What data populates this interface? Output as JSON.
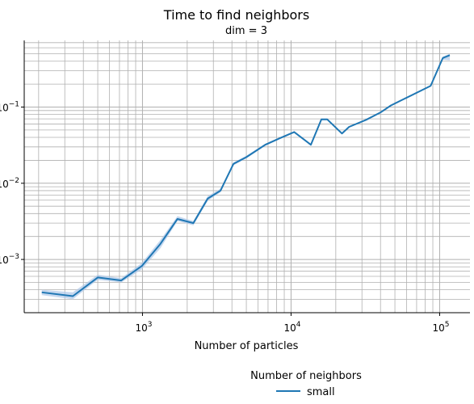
{
  "chart_data": {
    "type": "line",
    "title": "Time to find neighbors",
    "subtitle": "dim = 3",
    "xlabel": "Number of particles",
    "ylabel": "",
    "xscale": "log",
    "yscale": "log",
    "xlim": [
      160,
      160000
    ],
    "ylim": [
      0.0002,
      0.75
    ],
    "grid": "major and minor",
    "x_ticks": [
      {
        "value": 1000,
        "base": "10",
        "exp": "3"
      },
      {
        "value": 10000,
        "base": "10",
        "exp": "4"
      },
      {
        "value": 100000,
        "base": "10",
        "exp": "5"
      }
    ],
    "y_ticks": [
      {
        "value": 0.001,
        "base": "10",
        "exp": "−3"
      },
      {
        "value": 0.01,
        "base": "10",
        "exp": "−2"
      },
      {
        "value": 0.1,
        "base": "10",
        "exp": "−1"
      }
    ],
    "legend": {
      "title": "Number of neighbors",
      "placement": "bottom-center",
      "entries": [
        "small"
      ]
    },
    "series": [
      {
        "name": "small",
        "color": "#1f77b4",
        "band_color": "#aec7e8",
        "x": [
          210,
          340,
          500,
          720,
          990,
          1320,
          1720,
          2200,
          2750,
          3350,
          4100,
          5000,
          6700,
          8400,
          10500,
          13600,
          16000,
          17500,
          22000,
          24600,
          32000,
          40000,
          47000,
          54000,
          87000,
          105000,
          117000
        ],
        "y": [
          0.00037,
          0.00033,
          0.00058,
          0.00053,
          0.00082,
          0.0016,
          0.0034,
          0.003,
          0.0063,
          0.008,
          0.018,
          0.022,
          0.032,
          0.039,
          0.047,
          0.032,
          0.069,
          0.069,
          0.045,
          0.055,
          0.068,
          0.085,
          0.105,
          0.12,
          0.19,
          0.44,
          0.48
        ],
        "y_lower": [
          0.00034,
          0.0003,
          0.00054,
          0.0005,
          0.00074,
          0.0014,
          0.0032,
          0.0028,
          0.0059,
          0.0076,
          0.0172,
          0.0212,
          0.031,
          0.038,
          0.046,
          0.031,
          0.067,
          0.067,
          0.044,
          0.054,
          0.067,
          0.084,
          0.104,
          0.119,
          0.188,
          0.42,
          0.41
        ],
        "y_upper": [
          0.0004,
          0.00037,
          0.00063,
          0.00057,
          0.0009,
          0.0018,
          0.0037,
          0.0032,
          0.0068,
          0.0085,
          0.0188,
          0.023,
          0.033,
          0.04,
          0.048,
          0.033,
          0.071,
          0.071,
          0.046,
          0.056,
          0.069,
          0.086,
          0.106,
          0.121,
          0.192,
          0.46,
          0.5
        ]
      }
    ]
  }
}
